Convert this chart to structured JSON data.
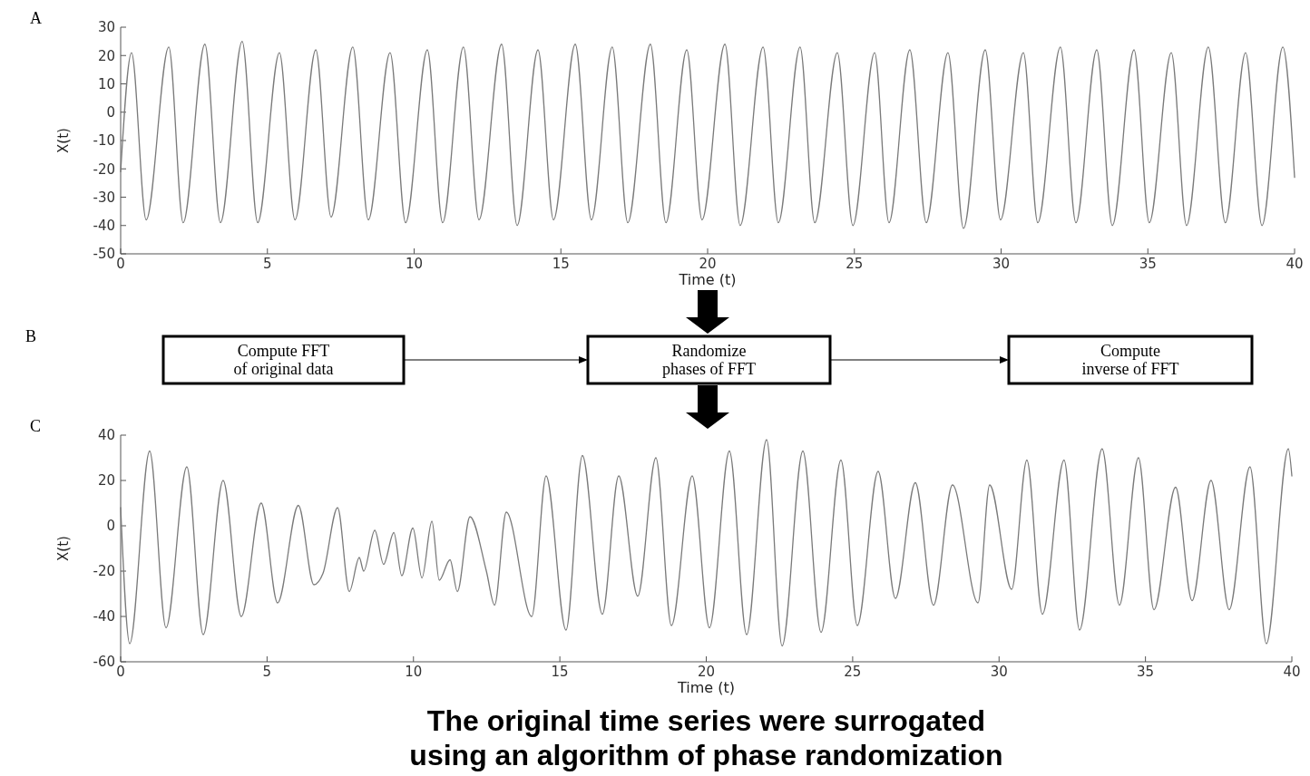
{
  "chart_data": [
    {
      "type": "line",
      "title": "A",
      "xlabel": "Time (t)",
      "ylabel": "X(t)",
      "xlim": [
        0,
        40
      ],
      "xticks": [
        0,
        5,
        10,
        15,
        20,
        25,
        30,
        35,
        40
      ],
      "ylim": [
        -50,
        30
      ],
      "yticks": [
        -50,
        -40,
        -30,
        -20,
        -10,
        0,
        10,
        20,
        30
      ],
      "series": [
        {
          "color": "#7a7a7a",
          "x": [
            0,
            0.37,
            0.87,
            1.64,
            2.13,
            2.87,
            3.4,
            4.14,
            4.67,
            5.41,
            5.94,
            6.65,
            7.17,
            7.91,
            8.44,
            9.18,
            9.71,
            10.45,
            10.97,
            11.68,
            12.21,
            12.98,
            13.51,
            14.22,
            14.75,
            15.49,
            16.04,
            16.75,
            17.28,
            18.05,
            18.58,
            19.29,
            19.81,
            20.59,
            21.11,
            21.89,
            22.41,
            23.15,
            23.65,
            24.42,
            24.95,
            25.69,
            26.18,
            26.89,
            27.45,
            28.19,
            28.72,
            29.46,
            29.98,
            30.76,
            31.25,
            32.02,
            32.55,
            33.26,
            33.79,
            34.53,
            35.05,
            35.8,
            36.32,
            37.06,
            37.64,
            38.33,
            38.89,
            39.6,
            40
          ],
          "values": [
            -21,
            21,
            -38,
            23,
            -39,
            24,
            -39,
            25,
            -39,
            21,
            -38,
            22,
            -37,
            23,
            -38,
            21,
            -39,
            22,
            -39,
            23,
            -38,
            24,
            -40,
            22,
            -38,
            24,
            -38,
            23,
            -39,
            24,
            -39,
            22,
            -38,
            24,
            -40,
            23,
            -39,
            23,
            -39,
            21,
            -40,
            21,
            -39,
            22,
            -39,
            21,
            -41,
            22,
            -38,
            21,
            -39,
            23,
            -39,
            22,
            -40,
            22,
            -39,
            21,
            -40,
            23,
            -39,
            21,
            -40,
            23,
            -23
          ]
        }
      ]
    },
    {
      "type": "other",
      "title": "B",
      "annotations": [
        "Compute FFT\nof original data",
        "Randomize\nphases of FFT",
        "Compute\ninverse of FFT"
      ]
    },
    {
      "type": "line",
      "title": "C",
      "xlabel": "Time (t)",
      "ylabel": "X(t)",
      "xlim": [
        0,
        40
      ],
      "xticks": [
        0,
        5,
        10,
        15,
        20,
        25,
        30,
        35,
        40
      ],
      "ylim": [
        -60,
        40
      ],
      "yticks": [
        -60,
        -40,
        -20,
        0,
        20,
        40
      ],
      "annotations": [
        "The original time series were surrogated\nusing an algorithm of phase randomization"
      ],
      "series": [
        {
          "color": "#7a7a7a",
          "x": [
            0,
            0.31,
            0.99,
            1.55,
            2.26,
            2.82,
            3.5,
            4.12,
            4.8,
            5.36,
            6.07,
            6.6,
            6.91,
            7.41,
            7.81,
            8.15,
            8.3,
            8.68,
            8.98,
            9.33,
            9.6,
            9.98,
            10.29,
            10.63,
            10.88,
            11.25,
            11.5,
            11.93,
            12.49,
            12.77,
            13.17,
            14.04,
            14.53,
            15.21,
            15.77,
            16.45,
            17.01,
            17.66,
            18.28,
            18.81,
            19.52,
            20.11,
            20.79,
            21.38,
            22.06,
            22.59,
            23.3,
            23.92,
            24.6,
            25.16,
            25.87,
            26.46,
            27.14,
            27.76,
            28.41,
            29.28,
            29.68,
            30.43,
            30.95,
            31.48,
            32.22,
            32.75,
            33.52,
            34.11,
            34.76,
            35.29,
            36.03,
            36.59,
            37.24,
            37.86,
            38.57,
            39.13,
            39.88,
            40
          ],
          "values": [
            8,
            -52,
            33,
            -45,
            26,
            -48,
            20,
            -40,
            10,
            -34,
            9,
            -26,
            -21,
            8,
            -29,
            -14,
            -20,
            -2,
            -17,
            -3,
            -22,
            -1,
            -23,
            2,
            -24,
            -15,
            -29,
            4,
            -20,
            -35,
            6,
            -40,
            22,
            -46,
            31,
            -39,
            22,
            -31,
            30,
            -44,
            22,
            -45,
            33,
            -48,
            38,
            -53,
            33,
            -47,
            29,
            -44,
            24,
            -32,
            19,
            -35,
            18,
            -34,
            18,
            -28,
            29,
            -39,
            29,
            -46,
            34,
            -35,
            30,
            -37,
            17,
            -33,
            20,
            -37,
            26,
            -52,
            34,
            22
          ]
        }
      ]
    }
  ]
}
